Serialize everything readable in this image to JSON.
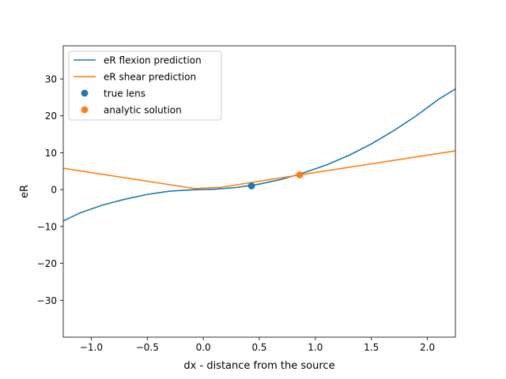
{
  "chart_data": {
    "type": "line",
    "title": "",
    "xlabel": "dx - distance from the source",
    "ylabel": "eR",
    "xlim": [
      -1.25,
      2.25
    ],
    "ylim": [
      -40,
      39
    ],
    "xticks": [
      -1.0,
      -0.5,
      0.0,
      0.5,
      1.0,
      1.5,
      2.0
    ],
    "xtick_labels": [
      "−1.0",
      "−0.5",
      "0.0",
      "0.5",
      "1.0",
      "1.5",
      "2.0"
    ],
    "yticks": [
      -30,
      -20,
      -10,
      0,
      10,
      20,
      30
    ],
    "ytick_labels": [
      "−30",
      "−20",
      "−10",
      "0",
      "10",
      "20",
      "30"
    ],
    "grid": false,
    "legend_position": "top-left",
    "series": [
      {
        "name": "eR flexion prediction",
        "kind": "line",
        "color": "#1f77b4",
        "x": [
          -1.25,
          -1.1,
          -0.9,
          -0.7,
          -0.5,
          -0.3,
          -0.1,
          0.1,
          0.3,
          0.5,
          0.7,
          0.9,
          1.1,
          1.3,
          1.5,
          1.7,
          1.9,
          2.1,
          2.25
        ],
        "y": [
          -8.5,
          -6.3,
          -4.2,
          -2.6,
          -1.3,
          -0.4,
          -0.05,
          0.1,
          0.6,
          1.5,
          2.8,
          4.6,
          6.7,
          9.3,
          12.4,
          16.0,
          20.0,
          24.5,
          27.3
        ]
      },
      {
        "name": "eR shear prediction",
        "kind": "line",
        "color": "#ff7f0e",
        "x": [
          -1.25,
          -0.08,
          0.15,
          0.86,
          2.25
        ],
        "y": [
          5.8,
          0.3,
          0.6,
          4.0,
          10.5
        ]
      },
      {
        "name": "true lens",
        "kind": "scatter",
        "color": "#1f77b4",
        "x": [
          0.43
        ],
        "y": [
          1.0
        ]
      },
      {
        "name": "analytic solution",
        "kind": "scatter",
        "color": "#ff7f0e",
        "x": [
          0.86
        ],
        "y": [
          4.0
        ]
      }
    ]
  }
}
